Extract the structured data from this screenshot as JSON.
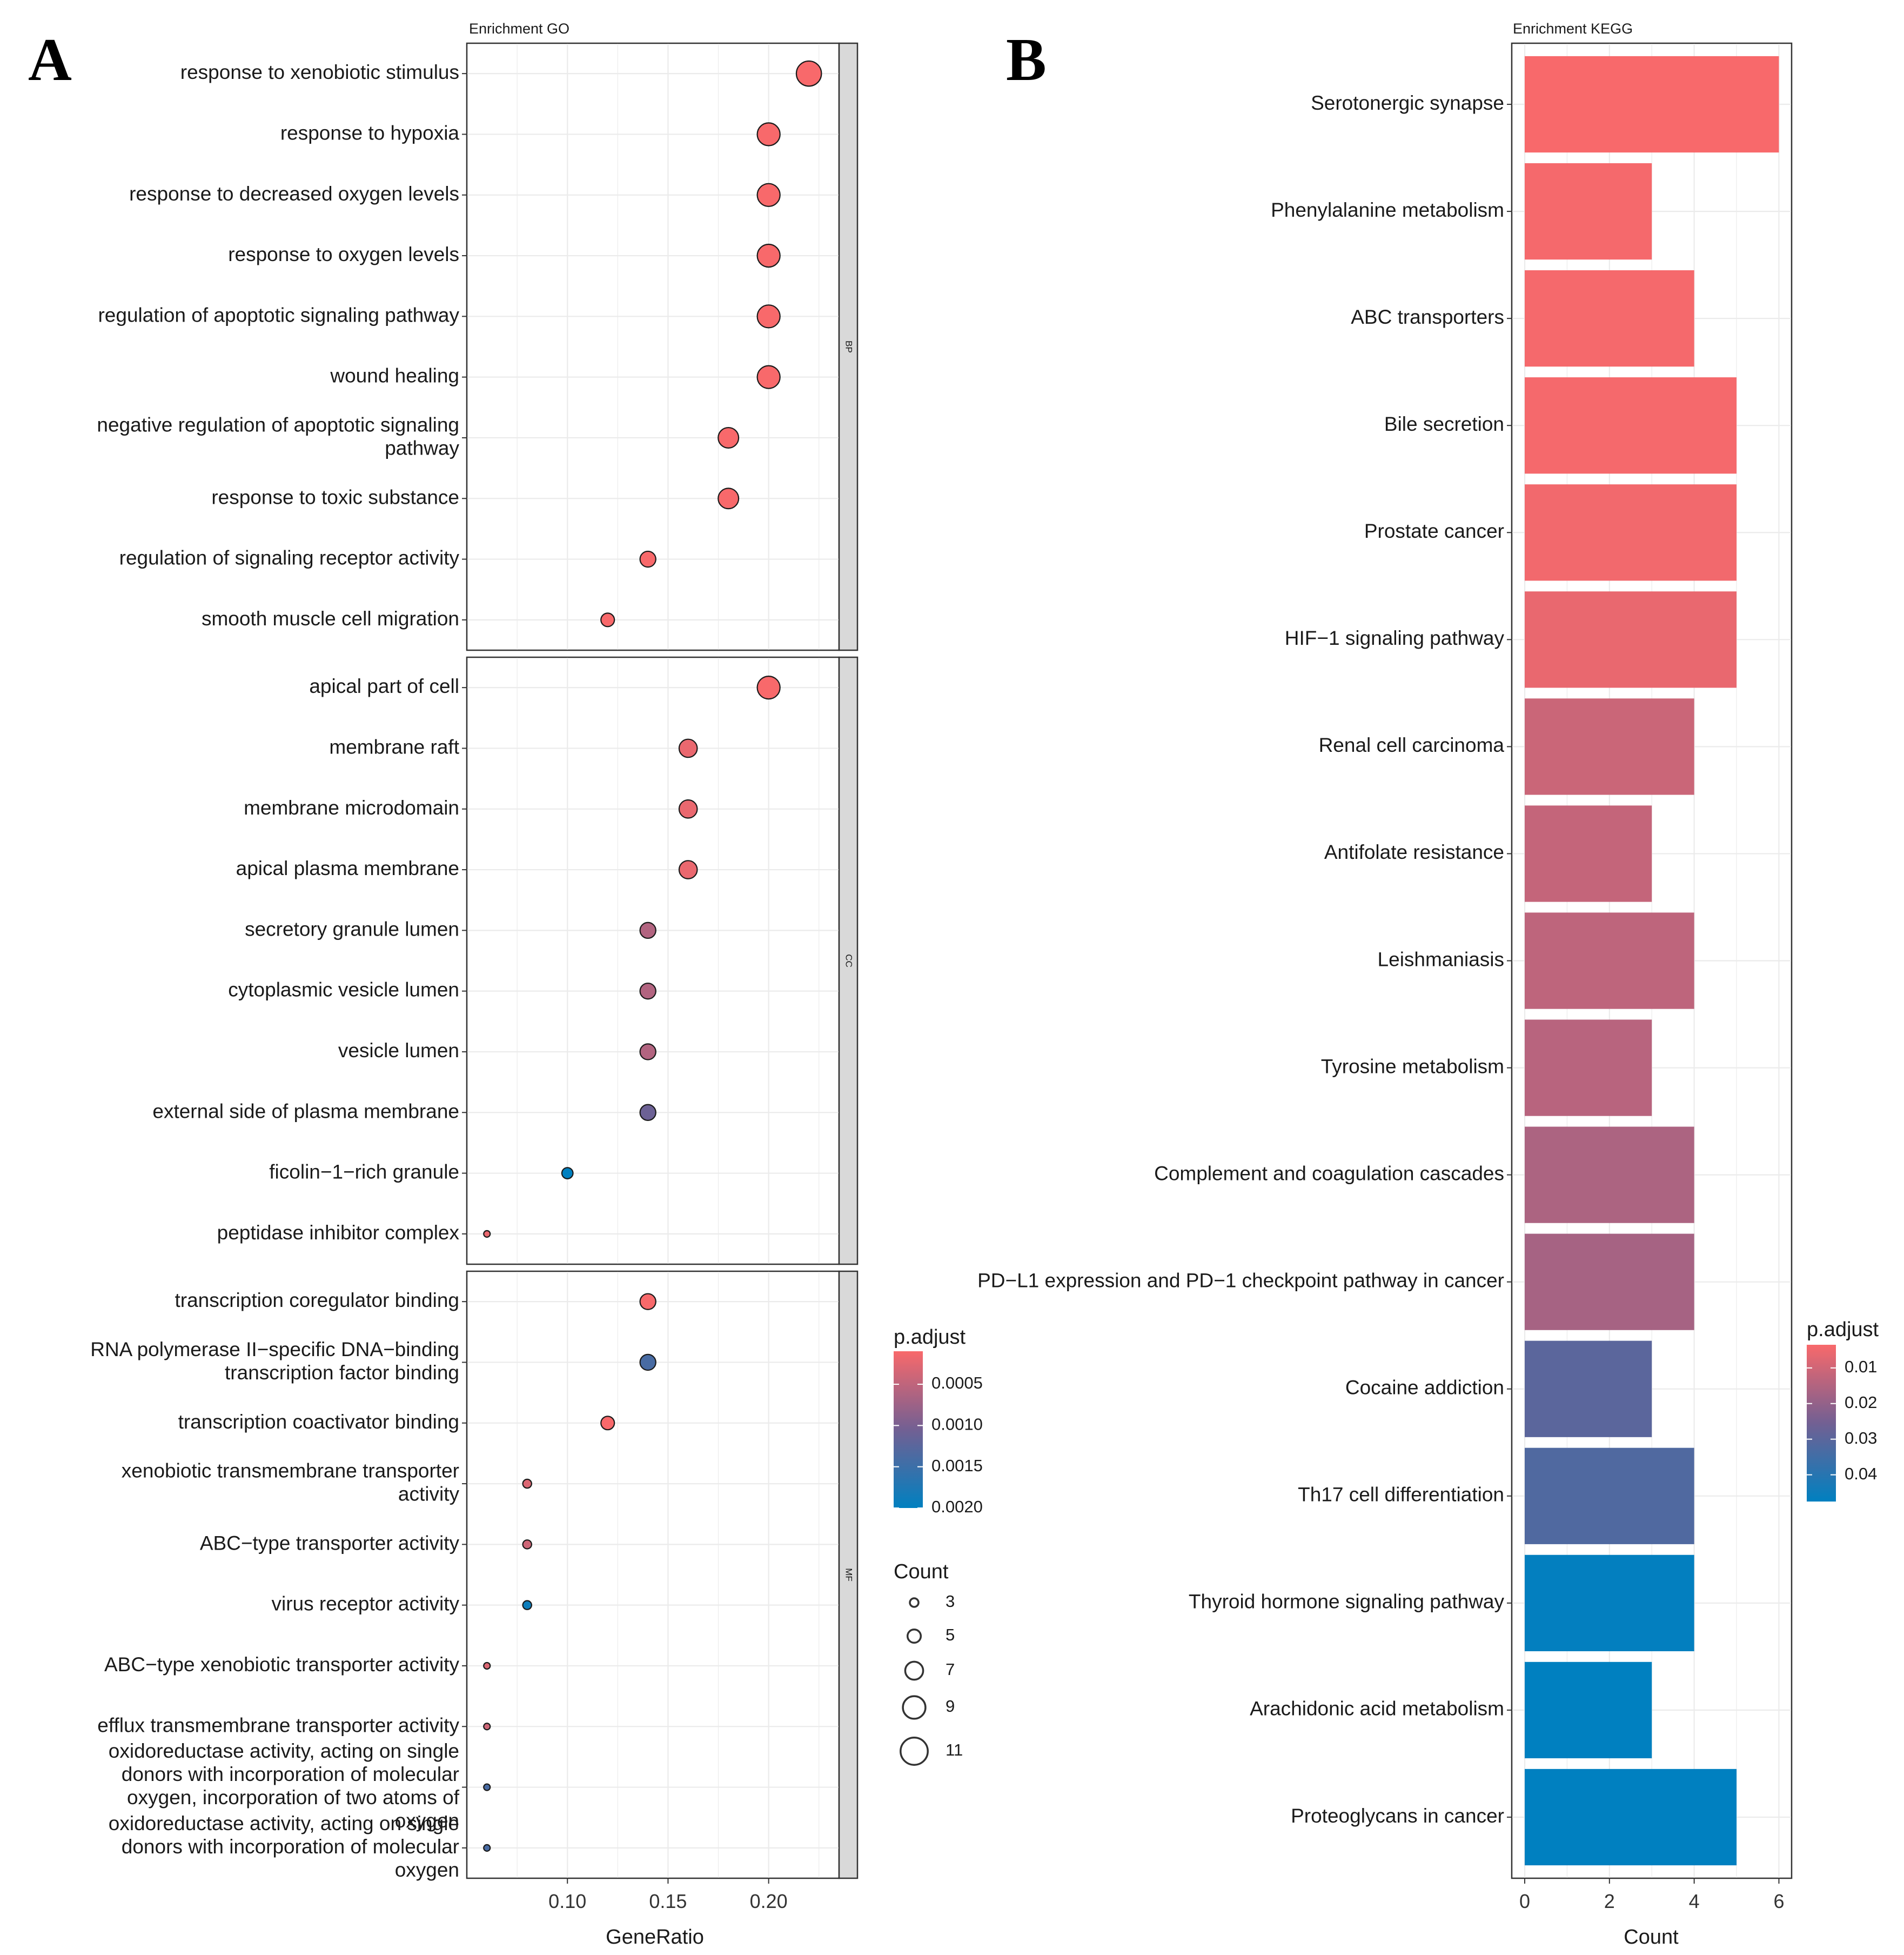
{
  "chart_data": [
    {
      "type": "scatter",
      "panel_letter": "A",
      "title": "Enrichment GO",
      "xlabel": "GeneRatio",
      "ylabel": "",
      "xlim": [
        0.05,
        0.235
      ],
      "x_ticks": [
        0.1,
        0.15,
        0.2
      ],
      "x_tick_labels": [
        "0.10",
        "0.15",
        "0.20"
      ],
      "grid": true,
      "facets": [
        {
          "name": "BP",
          "points": [
            {
              "label": "response to xenobiotic stimulus",
              "x": 0.22,
              "count": 11,
              "p_adjust": 0.0001
            },
            {
              "label": "response to hypoxia",
              "x": 0.2,
              "count": 10,
              "p_adjust": 0.0001
            },
            {
              "label": "response to decreased oxygen levels",
              "x": 0.2,
              "count": 10,
              "p_adjust": 0.0001
            },
            {
              "label": "response to oxygen levels",
              "x": 0.2,
              "count": 10,
              "p_adjust": 0.0001
            },
            {
              "label": "regulation of apoptotic signaling pathway",
              "x": 0.2,
              "count": 10,
              "p_adjust": 0.0001
            },
            {
              "label": "wound healing",
              "x": 0.2,
              "count": 10,
              "p_adjust": 0.0001
            },
            {
              "label": "negative regulation of apoptotic signaling pathway",
              "x": 0.18,
              "count": 9,
              "p_adjust": 0.0001
            },
            {
              "label": "response to toxic substance",
              "x": 0.18,
              "count": 9,
              "p_adjust": 0.0001
            },
            {
              "label": "regulation of signaling receptor activity",
              "x": 0.14,
              "count": 7,
              "p_adjust": 0.0001
            },
            {
              "label": "smooth muscle cell migration",
              "x": 0.12,
              "count": 6,
              "p_adjust": 0.0001
            }
          ]
        },
        {
          "name": "CC",
          "points": [
            {
              "label": "apical part of cell",
              "x": 0.2,
              "count": 10,
              "p_adjust": 0.0001
            },
            {
              "label": "membrane raft",
              "x": 0.16,
              "count": 8,
              "p_adjust": 0.0002
            },
            {
              "label": "membrane microdomain",
              "x": 0.16,
              "count": 8,
              "p_adjust": 0.0002
            },
            {
              "label": "apical plasma membrane",
              "x": 0.16,
              "count": 8,
              "p_adjust": 0.0002
            },
            {
              "label": "secretory granule lumen",
              "x": 0.14,
              "count": 7,
              "p_adjust": 0.0006
            },
            {
              "label": "cytoplasmic vesicle lumen",
              "x": 0.14,
              "count": 7,
              "p_adjust": 0.0006
            },
            {
              "label": "vesicle lumen",
              "x": 0.14,
              "count": 7,
              "p_adjust": 0.0006
            },
            {
              "label": "external side of plasma membrane",
              "x": 0.14,
              "count": 7,
              "p_adjust": 0.0011
            },
            {
              "label": "ficolin−1−rich granule",
              "x": 0.1,
              "count": 5,
              "p_adjust": 0.002
            },
            {
              "label": "peptidase inhibitor complex",
              "x": 0.06,
              "count": 3,
              "p_adjust": 0.0002
            }
          ]
        },
        {
          "name": "MF",
          "points": [
            {
              "label": "transcription coregulator binding",
              "x": 0.14,
              "count": 7,
              "p_adjust": 0.0001
            },
            {
              "label": "RNA polymerase II−specific DNA−binding transcription factor binding",
              "x": 0.14,
              "count": 7,
              "p_adjust": 0.0014
            },
            {
              "label": "transcription coactivator binding",
              "x": 0.12,
              "count": 6,
              "p_adjust": 0.0001
            },
            {
              "label": "xenobiotic transmembrane transporter activity",
              "x": 0.08,
              "count": 4,
              "p_adjust": 0.0003
            },
            {
              "label": "ABC−type transporter activity",
              "x": 0.08,
              "count": 4,
              "p_adjust": 0.0004
            },
            {
              "label": "virus receptor activity",
              "x": 0.08,
              "count": 4,
              "p_adjust": 0.0019
            },
            {
              "label": "ABC−type xenobiotic transporter activity",
              "x": 0.06,
              "count": 3,
              "p_adjust": 0.0003
            },
            {
              "label": "efflux transmembrane transporter activity",
              "x": 0.06,
              "count": 3,
              "p_adjust": 0.0004
            },
            {
              "label": "oxidoreductase activity, acting on single donors with incorporation of molecular oxygen, incorporation of two atoms of oxygen",
              "x": 0.06,
              "count": 3,
              "p_adjust": 0.0014
            },
            {
              "label": "oxidoreductase activity, acting on single donors with incorporation of molecular oxygen",
              "x": 0.06,
              "count": 3,
              "p_adjust": 0.0014
            }
          ]
        }
      ],
      "legend_color": {
        "title": "p.adjust",
        "range": [
          0.0001,
          0.002
        ],
        "ticks": [
          0.0005,
          0.001,
          0.0015,
          0.002
        ],
        "tick_labels": [
          "0.0005",
          "0.0010",
          "0.0015",
          "0.0020"
        ],
        "low_color": "#F8696B",
        "high_color": "#0080C0"
      },
      "legend_size": {
        "title": "Count",
        "values": [
          3,
          5,
          7,
          9,
          11
        ],
        "labels": [
          "3",
          "5",
          "7",
          "9",
          "11"
        ]
      }
    },
    {
      "type": "bar",
      "orientation": "horizontal",
      "panel_letter": "B",
      "title": "Enrichment KEGG",
      "xlabel": "Count",
      "ylabel": "",
      "xlim": [
        0,
        6.3
      ],
      "x_ticks": [
        0,
        2,
        4,
        6
      ],
      "x_tick_labels": [
        "0",
        "2",
        "4",
        "6"
      ],
      "grid": true,
      "categories": [
        "Serotonergic synapse",
        "Phenylalanine metabolism",
        "ABC transporters",
        "Bile secretion",
        "Prostate cancer",
        "HIF−1 signaling pathway",
        "Renal cell carcinoma",
        "Antifolate resistance",
        "Leishmaniasis",
        "Tyrosine metabolism",
        "Complement and coagulation cascades",
        "PD−L1 expression and PD−1 checkpoint pathway in cancer",
        "Cocaine addiction",
        "Th17 cell differentiation",
        "Thyroid hormone signaling pathway",
        "Arachidonic acid metabolism",
        "Proteoglycans in cancer"
      ],
      "values": [
        6,
        3,
        4,
        5,
        5,
        5,
        4,
        3,
        4,
        3,
        4,
        4,
        3,
        4,
        4,
        3,
        5
      ],
      "p_adjust": [
        0.0035,
        0.004,
        0.004,
        0.004,
        0.0045,
        0.006,
        0.011,
        0.012,
        0.013,
        0.014,
        0.016,
        0.017,
        0.03,
        0.032,
        0.047,
        0.0475,
        0.0475
      ],
      "legend_color": {
        "title": "p.adjust",
        "range": [
          0.0035,
          0.0475
        ],
        "ticks": [
          0.01,
          0.02,
          0.03,
          0.04
        ],
        "tick_labels": [
          "0.01",
          "0.02",
          "0.03",
          "0.04"
        ],
        "low_color": "#F8696B",
        "high_color": "#0080C0"
      }
    }
  ]
}
